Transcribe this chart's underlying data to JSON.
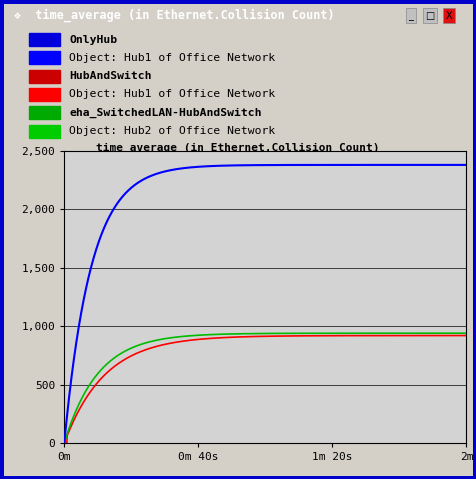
{
  "title_bar": "time_average (in Ethernet.Collision Count)",
  "chart_title": "time_average (in Ethernet.Collision Count)",
  "bg_color": "#d4d0c8",
  "plot_bg_color": "#d3d3d3",
  "border_color": "#0000cc",
  "titlebar_color": "#0000aa",
  "ylim": [
    0,
    2500
  ],
  "yticks": [
    0,
    500,
    1000,
    1500,
    2000,
    2500
  ],
  "ytick_labels": [
    "0",
    "500",
    "1,000",
    "1,500",
    "2,000",
    "2,500"
  ],
  "xtick_labels": [
    "0m",
    "0m 40s",
    "1m 20s",
    "2m"
  ],
  "xtick_positions": [
    0,
    40,
    80,
    120
  ],
  "xmax": 120,
  "legend": [
    {
      "label": "OnlyHub",
      "color": "#0000dd",
      "bold": true
    },
    {
      "label": "Object: Hub1 of Office Network",
      "color": "#0000ff",
      "bold": false
    },
    {
      "label": "HubAndSwitch",
      "color": "#cc0000",
      "bold": true
    },
    {
      "label": "Object: Hub1 of Office Network",
      "color": "#ff0000",
      "bold": false
    },
    {
      "label": "eha_SwitchedLAN-HubAndSwitch",
      "color": "#00aa00",
      "bold": true
    },
    {
      "label": "Object: Hub2 of Office Network",
      "color": "#00cc00",
      "bold": false
    }
  ],
  "blue_color": "#0000ff",
  "red_color": "#ff0000",
  "green_color": "#00bb00"
}
